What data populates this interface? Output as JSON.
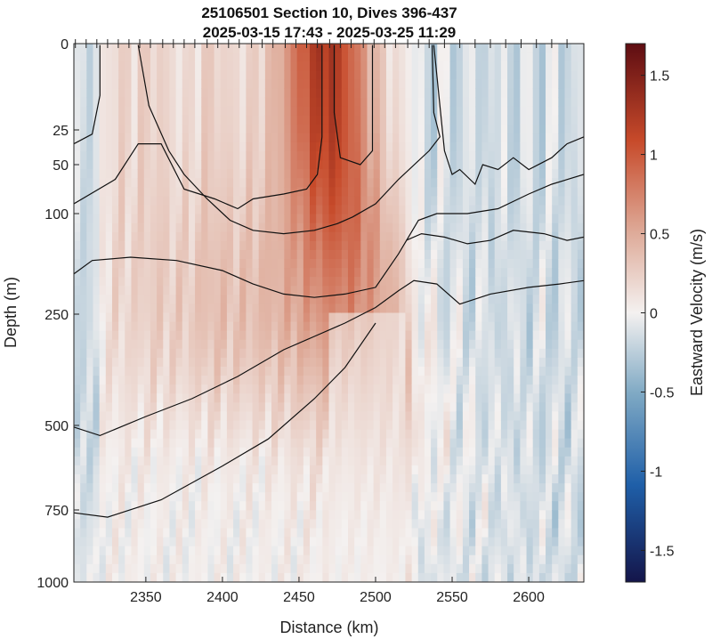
{
  "chart_data": {
    "type": "heatmap",
    "title": "25106501 Section 10, Dives 396-437",
    "subtitle": "2025-03-15 17:43 - 2025-03-25 11:29",
    "xlabel": "Distance (km)",
    "ylabel": "Depth (m)",
    "colorbar_label": "Eastward Velocity (m/s)",
    "xlim": [
      2303,
      2636
    ],
    "ylim_depth_reversed": [
      0,
      1000
    ],
    "y_scale": "nonlinear depth (stretched near surface)",
    "x_ticks": [
      2350,
      2400,
      2450,
      2500,
      2550,
      2600
    ],
    "x_tick_labels": [
      "2350",
      "2400",
      "2450",
      "2500",
      "2550",
      "2600"
    ],
    "y_ticks": [
      0,
      25,
      50,
      100,
      250,
      500,
      750,
      1000
    ],
    "y_tick_labels": [
      "0",
      "25",
      "50",
      "100",
      "250",
      "500",
      "750",
      "1000"
    ],
    "colorbar_range": [
      -1.7,
      1.7
    ],
    "colorbar_ticks": [
      -1.5,
      -1,
      -0.5,
      0,
      0.5,
      1,
      1.5
    ],
    "colorbar_tick_labels": [
      "-1.5",
      "-1",
      "-0.5",
      "0",
      "0.5",
      "1",
      "1.5"
    ],
    "colormap": "diverging blue-white-red",
    "colors": {
      "negative_end": "#14154a",
      "mid": "#f4f1f0",
      "positive_end": "#5e0d12"
    },
    "dive_positions_km": [
      2304,
      2311,
      2318,
      2325,
      2332,
      2339,
      2346,
      2353,
      2361,
      2368,
      2375,
      2382,
      2390,
      2397,
      2404,
      2411,
      2419,
      2426,
      2433,
      2441,
      2448,
      2455,
      2462,
      2470,
      2477,
      2484,
      2492,
      2499,
      2506,
      2513,
      2521,
      2528,
      2535,
      2545,
      2555,
      2565,
      2575,
      2585,
      2595,
      2605,
      2615,
      2625
    ],
    "contour_lines_depth_m": [
      {
        "x": [
          2303,
          2315,
          2320,
          2320
        ],
        "y": [
          35,
          28,
          15,
          0.4
        ]
      },
      {
        "x": [
          2303,
          2330,
          2345,
          2360,
          2375,
          2395,
          2410,
          2420,
          2440,
          2455,
          2462,
          2465,
          2465
        ],
        "y": [
          90,
          65,
          35,
          35,
          75,
          85,
          95,
          85,
          80,
          75,
          60,
          30,
          0.4
        ]
      },
      {
        "x": [
          2345,
          2352,
          2365,
          2375,
          2390,
          2405,
          2420,
          2440,
          2460,
          2475,
          2485,
          2500,
          2515,
          2535,
          2542,
          2538,
          2537
        ],
        "y": [
          0.4,
          18,
          40,
          60,
          85,
          110,
          125,
          130,
          125,
          115,
          105,
          90,
          65,
          40,
          30,
          20,
          0.4
        ]
      },
      {
        "x": [
          2473,
          2473,
          2477,
          2490,
          2498,
          2498
        ],
        "y": [
          0.4,
          20,
          45,
          50,
          40,
          0.4
        ]
      },
      {
        "x": [
          2303,
          2315,
          2340,
          2370,
          2400,
          2420,
          2440,
          2460,
          2480,
          2500,
          2515,
          2528,
          2540,
          2560,
          2580,
          2600,
          2615,
          2636
        ],
        "y": [
          190,
          170,
          165,
          170,
          185,
          205,
          220,
          225,
          220,
          210,
          160,
          110,
          100,
          100,
          95,
          80,
          70,
          60
        ]
      },
      {
        "x": [
          2538,
          2545,
          2550,
          2555,
          2565,
          2570,
          2580,
          2590,
          2600,
          2615,
          2625,
          2636
        ],
        "y": [
          0.4,
          40,
          60,
          55,
          70,
          50,
          55,
          45,
          55,
          45,
          35,
          30
        ]
      },
      {
        "x": [
          2520,
          2530,
          2545,
          2560,
          2575,
          2590,
          2610,
          2625,
          2636
        ],
        "y": [
          140,
          130,
          135,
          145,
          140,
          125,
          130,
          140,
          135
        ]
      },
      {
        "x": [
          2303,
          2320,
          2350,
          2380,
          2410,
          2440,
          2460,
          2480,
          2500,
          2515,
          2525,
          2540,
          2555,
          2575,
          2600,
          2620,
          2636
        ],
        "y": [
          505,
          530,
          480,
          440,
          390,
          330,
          300,
          270,
          240,
          215,
          200,
          205,
          235,
          220,
          210,
          205,
          200
        ]
      },
      {
        "x": [
          2303,
          2325,
          2360,
          2400,
          2430,
          2460,
          2480,
          2500
        ],
        "y": [
          760,
          775,
          720,
          620,
          540,
          440,
          370,
          270
        ]
      }
    ],
    "grid": false
  }
}
